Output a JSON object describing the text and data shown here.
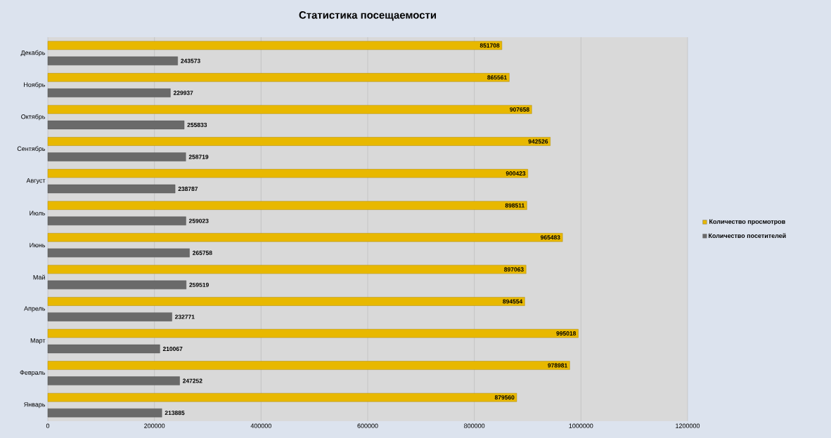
{
  "chart_data": {
    "type": "bar",
    "orientation": "horizontal",
    "title": "Статистика посещаемости",
    "categories": [
      "Декабрь",
      "Ноябрь",
      "Октябрь",
      "Сентябрь",
      "Август",
      "Июль",
      "Июнь",
      "Май",
      "Апрель",
      "Март",
      "Февраль",
      "Январь"
    ],
    "series": [
      {
        "name": "Количество просмотров",
        "color": "#e8b800",
        "values": [
          851708,
          865561,
          907658,
          942526,
          900423,
          898511,
          965483,
          897063,
          894554,
          995018,
          978981,
          879560
        ]
      },
      {
        "name": "Количество посетителей",
        "color": "#6a6a6a",
        "values": [
          243573,
          229937,
          255833,
          258719,
          238787,
          259023,
          265758,
          259519,
          232771,
          210067,
          247252,
          213885
        ]
      }
    ],
    "xlim": [
      0,
      1200000
    ],
    "xticks": [
      0,
      200000,
      400000,
      600000,
      800000,
      1000000,
      1200000
    ],
    "grid": "x",
    "legend": "right",
    "data_labels": true
  }
}
